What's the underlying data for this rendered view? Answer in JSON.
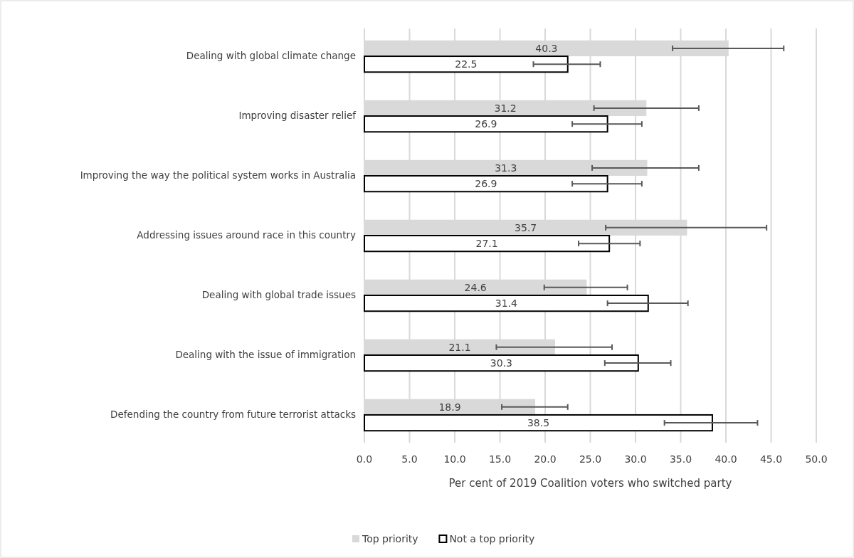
{
  "chart_data": {
    "type": "bar",
    "orientation": "horizontal",
    "categories": [
      "Dealing with global climate change",
      "Improving disaster relief",
      "Improving the way the political system works in Australia",
      "Addressing issues around race in this country",
      "Dealing with global trade issues",
      "Dealing with the issue of immigration",
      "Defending the country from future terrorist attacks"
    ],
    "series": [
      {
        "name": "Top priority",
        "color": "#d9d9d9",
        "values": [
          40.3,
          31.2,
          31.3,
          35.7,
          24.6,
          21.1,
          18.9
        ],
        "errors": [
          [
            34.1,
            46.4
          ],
          [
            25.4,
            37.0
          ],
          [
            25.2,
            37.0
          ],
          [
            26.7,
            44.5
          ],
          [
            19.9,
            29.1
          ],
          [
            14.6,
            27.4
          ],
          [
            15.2,
            22.5
          ]
        ]
      },
      {
        "name": "Not a top priority",
        "color": "#ffffff",
        "values": [
          22.5,
          26.9,
          26.9,
          27.1,
          31.4,
          30.3,
          38.5
        ],
        "errors": [
          [
            18.7,
            26.1
          ],
          [
            23.0,
            30.7
          ],
          [
            23.0,
            30.7
          ],
          [
            23.7,
            30.5
          ],
          [
            26.9,
            35.8
          ],
          [
            26.6,
            33.9
          ],
          [
            33.2,
            43.5
          ]
        ]
      }
    ],
    "xlabel": "Per cent of 2019 Coalition voters who switched party",
    "xlim": [
      0,
      50
    ],
    "xticks": [
      {
        "value": 0,
        "label": "0.0"
      },
      {
        "value": 5,
        "label": "5.0"
      },
      {
        "value": 10,
        "label": "10.0"
      },
      {
        "value": 15,
        "label": "15.0"
      },
      {
        "value": 20,
        "label": "20.0"
      },
      {
        "value": 25,
        "label": "25.0"
      },
      {
        "value": 30,
        "label": "30.0"
      },
      {
        "value": 35,
        "label": "35.0"
      },
      {
        "value": 40,
        "label": "40.0"
      },
      {
        "value": 45,
        "label": "45.0"
      },
      {
        "value": 50,
        "label": "50.0"
      }
    ],
    "grid": "x",
    "legend": "bottom",
    "data_labels": true
  }
}
